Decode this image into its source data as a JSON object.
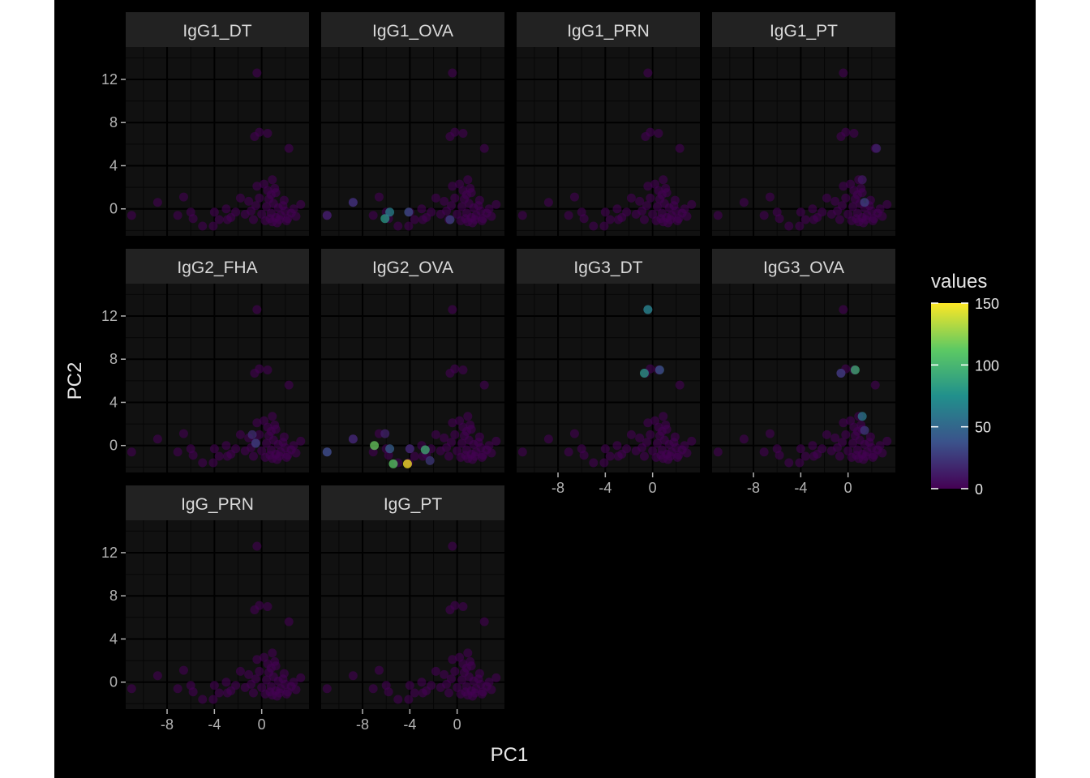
{
  "chart_data": {
    "type": "scatter",
    "xlabel": "PC1",
    "ylabel": "PC2",
    "xticks": [
      -8,
      -4,
      0
    ],
    "yticks": [
      0,
      4,
      8,
      12
    ],
    "xlim": [
      -11.5,
      4
    ],
    "ylim": [
      -2.5,
      15
    ],
    "colors": {
      "background": "#000000",
      "panel": "#111111",
      "strip": "#222222",
      "grid_major": "#000000",
      "grid_minor": "#070707"
    },
    "legend": {
      "title": "values",
      "position": "right",
      "scale": "viridis",
      "limits": [
        0,
        150
      ],
      "breaks": [
        0,
        50,
        100,
        150
      ]
    },
    "base_points": [
      [
        -0.4,
        12.6
      ],
      [
        -0.6,
        6.7
      ],
      [
        -0.2,
        7.1
      ],
      [
        0.5,
        7.0
      ],
      [
        2.3,
        5.6
      ],
      [
        0.9,
        2.7
      ],
      [
        0.2,
        2.3
      ],
      [
        -0.4,
        2.1
      ],
      [
        1.2,
        1.5
      ],
      [
        0.8,
        1.3
      ],
      [
        -11.0,
        -0.6
      ],
      [
        -8.8,
        0.6
      ],
      [
        -6.6,
        1.1
      ],
      [
        -7.1,
        -0.6
      ],
      [
        -5.8,
        -0.9
      ],
      [
        -6.0,
        -0.3
      ],
      [
        -4.0,
        -0.3
      ],
      [
        -4.1,
        -1.6
      ],
      [
        -5.0,
        -1.6
      ],
      [
        -3.6,
        -1.0
      ],
      [
        -3.0,
        0.0
      ],
      [
        -2.2,
        -0.3
      ],
      [
        -2.6,
        -0.8
      ],
      [
        -1.8,
        1.0
      ],
      [
        -1.1,
        0.7
      ],
      [
        -0.9,
        -0.2
      ],
      [
        -0.5,
        0.3
      ],
      [
        -0.2,
        1.0
      ],
      [
        0.0,
        -0.5
      ],
      [
        0.4,
        0.2
      ],
      [
        0.6,
        0.9
      ],
      [
        0.8,
        -0.4
      ],
      [
        1.0,
        0.5
      ],
      [
        1.2,
        -0.8
      ],
      [
        1.4,
        0.1
      ],
      [
        1.6,
        -0.6
      ],
      [
        1.8,
        0.3
      ],
      [
        2.0,
        -0.2
      ],
      [
        2.2,
        -0.9
      ],
      [
        2.5,
        -0.4
      ],
      [
        3.3,
        0.4
      ],
      [
        2.9,
        -0.7
      ],
      [
        0.3,
        -1.1
      ],
      [
        0.9,
        -1.2
      ],
      [
        1.5,
        -1.0
      ],
      [
        -1.4,
        -0.5
      ],
      [
        -2.9,
        -1.0
      ],
      [
        1.1,
        1.9
      ],
      [
        0.5,
        1.7
      ],
      [
        1.9,
        0.8
      ],
      [
        0.7,
        -0.9
      ],
      [
        1.3,
        -1.3
      ],
      [
        2.1,
        -1.1
      ],
      [
        2.7,
        0.0
      ],
      [
        -0.7,
        -1.0
      ]
    ],
    "panels": [
      {
        "label": "IgG1_DT",
        "highlights": []
      },
      {
        "label": "IgG1_OVA",
        "highlights": [
          {
            "x": -8.8,
            "y": 0.6,
            "v": 25
          },
          {
            "x": -6.1,
            "y": -0.9,
            "v": 80
          },
          {
            "x": -5.7,
            "y": -0.3,
            "v": 65
          },
          {
            "x": -4.1,
            "y": -0.3,
            "v": 35
          },
          {
            "x": -0.6,
            "y": -1.0,
            "v": 30
          },
          {
            "x": -11.0,
            "y": -0.6,
            "v": 15
          }
        ]
      },
      {
        "label": "IgG1_PRN",
        "highlights": []
      },
      {
        "label": "IgG1_PT",
        "highlights": [
          {
            "x": 2.4,
            "y": 5.6,
            "v": 15
          },
          {
            "x": 1.4,
            "y": 0.6,
            "v": 30
          },
          {
            "x": 1.2,
            "y": 2.7,
            "v": 10
          }
        ]
      },
      {
        "label": "IgG2_FHA",
        "highlights": [
          {
            "x": -0.8,
            "y": 1.0,
            "v": 20
          },
          {
            "x": -0.5,
            "y": 0.2,
            "v": 30
          }
        ]
      },
      {
        "label": "IgG2_OVA",
        "highlights": [
          {
            "x": -7.0,
            "y": 0.0,
            "v": 115
          },
          {
            "x": -5.4,
            "y": -1.7,
            "v": 110
          },
          {
            "x": -4.2,
            "y": -1.7,
            "v": 150
          },
          {
            "x": -2.7,
            "y": -0.4,
            "v": 95
          },
          {
            "x": -5.7,
            "y": -0.3,
            "v": 45
          },
          {
            "x": -6.1,
            "y": 1.1,
            "v": 15
          },
          {
            "x": -4.0,
            "y": -0.3,
            "v": 20
          },
          {
            "x": -2.3,
            "y": -1.4,
            "v": 25
          },
          {
            "x": -8.8,
            "y": 0.6,
            "v": 20
          },
          {
            "x": -11.0,
            "y": -0.6,
            "v": 40
          }
        ]
      },
      {
        "label": "IgG3_DT",
        "highlights": [
          {
            "x": -0.4,
            "y": 12.6,
            "v": 75
          },
          {
            "x": -0.7,
            "y": 6.7,
            "v": 80
          },
          {
            "x": 0.6,
            "y": 7.0,
            "v": 40
          }
        ]
      },
      {
        "label": "IgG3_OVA",
        "highlights": [
          {
            "x": 0.6,
            "y": 7.0,
            "v": 95
          },
          {
            "x": -0.6,
            "y": 6.7,
            "v": 30
          },
          {
            "x": 1.2,
            "y": 2.7,
            "v": 60
          },
          {
            "x": 1.4,
            "y": 1.4,
            "v": 25
          }
        ]
      },
      {
        "label": "IgG_PRN",
        "highlights": []
      },
      {
        "label": "IgG_PT",
        "highlights": []
      }
    ]
  }
}
